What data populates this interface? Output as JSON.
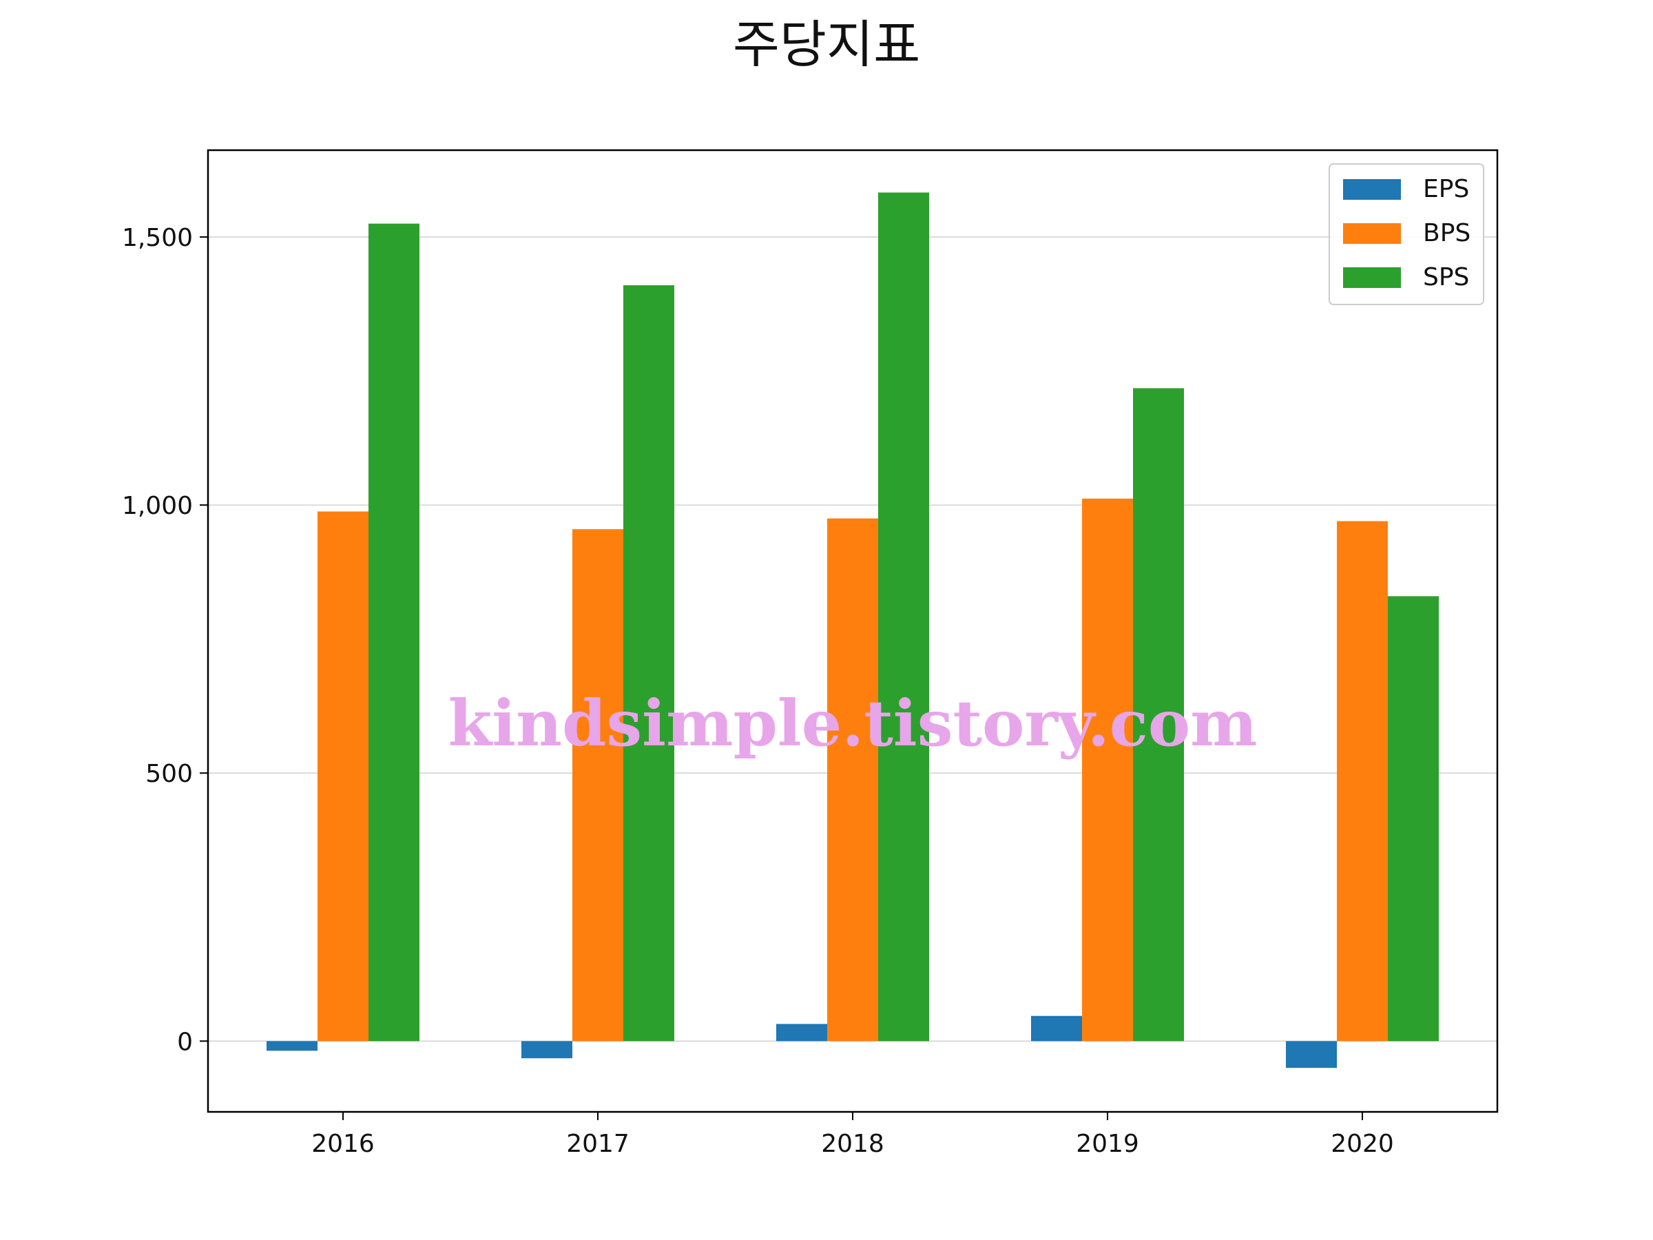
{
  "chart_data": {
    "type": "bar",
    "title": "주당지표",
    "xlabel": "",
    "ylabel": "",
    "categories": [
      "2016",
      "2017",
      "2018",
      "2019",
      "2020"
    ],
    "series": [
      {
        "name": "EPS",
        "color": "#1f77b4",
        "values": [
          -18,
          -32,
          32,
          47,
          -50
        ]
      },
      {
        "name": "BPS",
        "color": "#ff7f0e",
        "values": [
          988,
          955,
          975,
          1012,
          970
        ]
      },
      {
        "name": "SPS",
        "color": "#2ca02c",
        "values": [
          1525,
          1410,
          1583,
          1218,
          830
        ]
      }
    ],
    "ylim": [
      -132,
      1662
    ],
    "yticks": [
      0,
      500,
      1000,
      1500
    ],
    "ytick_labels": [
      "0",
      "500",
      "1,000",
      "1,500"
    ],
    "grid": "horizontal",
    "legend_position": "top-right"
  },
  "watermark": "kindsimple.tistory.com"
}
